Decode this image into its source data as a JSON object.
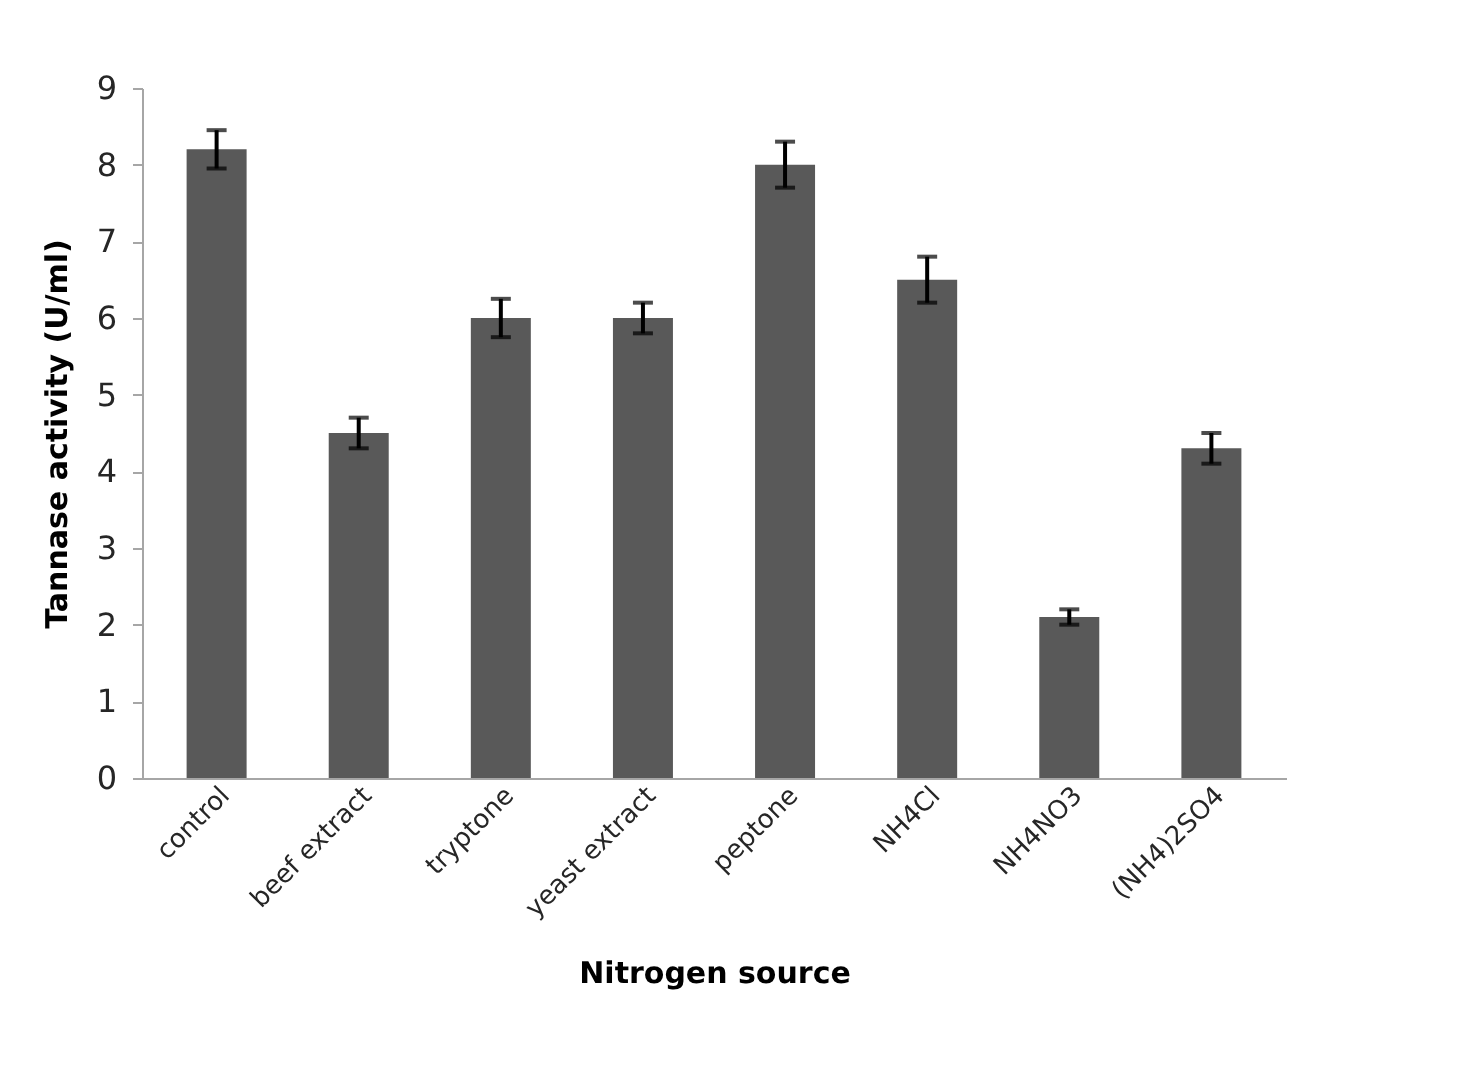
{
  "chart_data": {
    "type": "bar",
    "xlabel": "Nitrogen source",
    "ylabel": "Tannase activity (U/ml)",
    "categories": [
      "control",
      "beef extract",
      "tryptone",
      "yeast extract",
      "peptone",
      "NH4Cl",
      "NH4NO3",
      "(NH4)2SO4"
    ],
    "values": [
      8.2,
      4.5,
      6.0,
      6.0,
      8.0,
      6.5,
      2.1,
      4.3
    ],
    "errors": [
      0.25,
      0.2,
      0.25,
      0.2,
      0.3,
      0.3,
      0.1,
      0.2
    ],
    "color": "#595959",
    "ylim": [
      0,
      9
    ],
    "yticks": [
      0,
      1,
      2,
      3,
      4,
      5,
      6,
      7,
      8,
      9
    ],
    "grid": false
  }
}
